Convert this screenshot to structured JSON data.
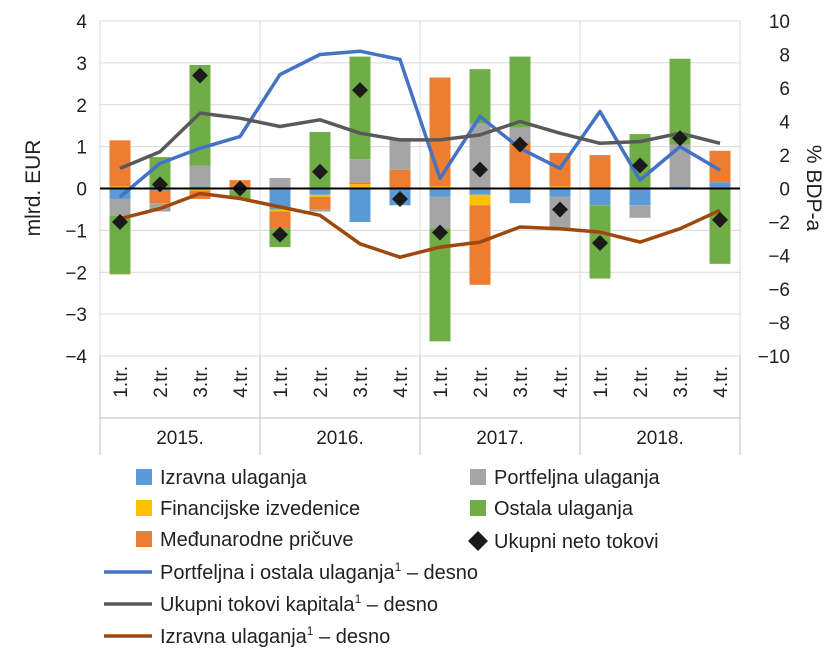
{
  "chart_data": {
    "type": "bar",
    "categories": [
      "1.tr.",
      "2.tr.",
      "3.tr.",
      "4.tr.",
      "1.tr.",
      "2.tr.",
      "3.tr.",
      "4.tr.",
      "1.tr.",
      "2.tr.",
      "3.tr.",
      "4.tr.",
      "1.tr.",
      "2.tr.",
      "3.tr.",
      "4.tr."
    ],
    "years": [
      "2015.",
      "2016.",
      "2017.",
      "2018."
    ],
    "ylabel_left": "mlrd. EUR",
    "ylabel_right": "% BDP-a",
    "ylim_left": [
      -4,
      4
    ],
    "ylim_right": [
      -10,
      10
    ],
    "yticks_left": [
      "4",
      "3",
      "2",
      "1",
      "0",
      "−1",
      "−2",
      "−3",
      "−4"
    ],
    "yticks_right": [
      "10",
      "8",
      "6",
      "4",
      "2",
      "0",
      "−2",
      "−4",
      "−6",
      "−8",
      "−10"
    ],
    "bar_series": [
      {
        "name": "Izravna ulaganja",
        "color": "#5b9bd5",
        "values": [
          -0.25,
          -0.05,
          0.05,
          0.0,
          -0.5,
          -0.15,
          -0.8,
          -0.4,
          -0.2,
          -0.15,
          -0.35,
          -0.2,
          -0.4,
          -0.4,
          0.05,
          0.15
        ]
      },
      {
        "name": "Financijske izvedenice",
        "color": "#ffc000",
        "values": [
          0.05,
          0.0,
          -0.05,
          0.0,
          -0.05,
          -0.05,
          0.1,
          0.0,
          0.05,
          -0.25,
          0.0,
          0.05,
          0.0,
          0.0,
          0.0,
          0.0
        ]
      },
      {
        "name": "Međunarodne pričuve",
        "color": "#ed7d31",
        "values": [
          1.1,
          -0.3,
          -0.2,
          0.2,
          -0.4,
          -0.3,
          0.05,
          0.45,
          2.6,
          -1.9,
          1.1,
          0.8,
          0.8,
          0.0,
          0.0,
          0.75
        ]
      },
      {
        "name": "Portfeljna ulaganja",
        "color": "#a5a5a5",
        "values": [
          -0.4,
          -0.2,
          0.5,
          -0.05,
          0.25,
          -0.05,
          0.55,
          0.75,
          -0.75,
          1.55,
          0.35,
          -0.8,
          0.0,
          -0.3,
          1.0,
          0.0
        ]
      },
      {
        "name": "Ostala ulaganja",
        "color": "#70ad47",
        "values": [
          -1.4,
          0.75,
          2.4,
          -0.2,
          -0.45,
          1.35,
          2.45,
          0.0,
          -2.7,
          1.3,
          1.7,
          0.0,
          -1.75,
          1.3,
          2.05,
          -1.8
        ]
      }
    ],
    "net_flows": {
      "name": "Ukupni neto tokovi",
      "values": [
        -0.8,
        0.1,
        2.7,
        0.0,
        -1.1,
        0.4,
        2.35,
        -0.25,
        -1.05,
        0.45,
        1.05,
        -0.5,
        -1.3,
        0.55,
        1.2,
        -0.75
      ]
    },
    "line_series": [
      {
        "name": "Portfeljna i ostala ulaganja",
        "color": "#4472c4",
        "values": [
          -0.5,
          1.5,
          2.4,
          3.1,
          6.8,
          8.0,
          8.2,
          7.7,
          0.6,
          4.3,
          2.4,
          1.2,
          4.6,
          0.5,
          2.5,
          1.1
        ]
      },
      {
        "name": "Ukupni tokovi kapitala",
        "color": "#595959",
        "values": [
          1.2,
          2.2,
          4.5,
          4.2,
          3.7,
          4.1,
          3.3,
          2.9,
          2.9,
          3.2,
          4.0,
          3.3,
          2.7,
          2.8,
          3.3,
          2.7
        ]
      },
      {
        "name": "Izravna ulaganja",
        "color": "#9e480e",
        "values": [
          -1.8,
          -1.2,
          -0.3,
          -0.6,
          -1.1,
          -1.6,
          -3.3,
          -4.1,
          -3.5,
          -3.2,
          -2.3,
          -2.4,
          -2.6,
          -3.2,
          -2.4,
          -1.3
        ]
      }
    ],
    "grid": true
  },
  "legend": {
    "izravna": "Izravna ulaganja",
    "portfeljna": "Portfeljna ulaganja",
    "izvedenice": "Financijske izvedenice",
    "ostala": "Ostala ulaganja",
    "pricuve": "Međunarodne pričuve",
    "neto": "Ukupni neto tokovi",
    "line_portfeljna": "Portfeljna i ostala ulaganja",
    "line_ukupni": "Ukupni tokovi kapitala",
    "line_izravna": "Izravna ulaganja",
    "sup": "1",
    "suffix": " – desno"
  },
  "colors": {
    "izravna": "#5b9bd5",
    "izvedenice": "#ffc000",
    "pricuve": "#ed7d31",
    "portfeljna": "#a5a5a5",
    "ostala": "#70ad47",
    "line_portfeljna": "#4472c4",
    "line_ukupni": "#595959",
    "line_izravna": "#9e480e"
  }
}
